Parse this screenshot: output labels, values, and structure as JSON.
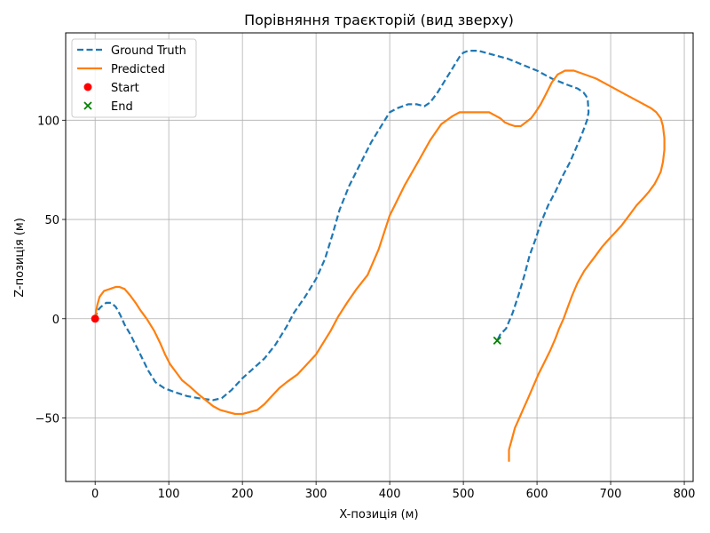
{
  "chart_data": {
    "type": "line",
    "title": "Порівняння траєкторій (вид зверху)",
    "xlabel": "X-позиція (м)",
    "ylabel": "Z-позиція (м)",
    "xlim": [
      -40,
      812
    ],
    "ylim": [
      -82,
      144
    ],
    "xticks": [
      0,
      100,
      200,
      300,
      400,
      500,
      600,
      700,
      800
    ],
    "yticks": [
      -50,
      0,
      50,
      100
    ],
    "grid": true,
    "legend_position": "top-left",
    "series": [
      {
        "name": "Ground Truth",
        "color": "#1f77b4",
        "style": "dashed",
        "points": [
          [
            0,
            0
          ],
          [
            3,
            4
          ],
          [
            8,
            6
          ],
          [
            15,
            8
          ],
          [
            22,
            8
          ],
          [
            28,
            6
          ],
          [
            34,
            2
          ],
          [
            40,
            -3
          ],
          [
            48,
            -8
          ],
          [
            56,
            -14
          ],
          [
            64,
            -20
          ],
          [
            72,
            -26
          ],
          [
            82,
            -32
          ],
          [
            94,
            -35
          ],
          [
            108,
            -37
          ],
          [
            125,
            -39
          ],
          [
            140,
            -40
          ],
          [
            160,
            -41
          ],
          [
            172,
            -40
          ],
          [
            185,
            -36
          ],
          [
            200,
            -30
          ],
          [
            212,
            -26
          ],
          [
            230,
            -20
          ],
          [
            245,
            -13
          ],
          [
            260,
            -4
          ],
          [
            270,
            3
          ],
          [
            285,
            11
          ],
          [
            300,
            20
          ],
          [
            312,
            30
          ],
          [
            322,
            42
          ],
          [
            332,
            55
          ],
          [
            345,
            67
          ],
          [
            360,
            78
          ],
          [
            375,
            89
          ],
          [
            390,
            98
          ],
          [
            400,
            104
          ],
          [
            410,
            106
          ],
          [
            425,
            108
          ],
          [
            437,
            108
          ],
          [
            447,
            107
          ],
          [
            455,
            109
          ],
          [
            465,
            114
          ],
          [
            475,
            120
          ],
          [
            485,
            126
          ],
          [
            495,
            132
          ],
          [
            500,
            134
          ],
          [
            507,
            135
          ],
          [
            520,
            135
          ],
          [
            540,
            133
          ],
          [
            560,
            131
          ],
          [
            580,
            128
          ],
          [
            600,
            125
          ],
          [
            620,
            121
          ],
          [
            640,
            118
          ],
          [
            655,
            116
          ],
          [
            663,
            114
          ],
          [
            667,
            112
          ],
          [
            669,
            110
          ],
          [
            670,
            104
          ],
          [
            668,
            100
          ],
          [
            664,
            96
          ],
          [
            660,
            92
          ],
          [
            652,
            85
          ],
          [
            645,
            79
          ],
          [
            635,
            72
          ],
          [
            625,
            64
          ],
          [
            615,
            57
          ],
          [
            605,
            48
          ],
          [
            598,
            40
          ],
          [
            590,
            32
          ],
          [
            583,
            22
          ],
          [
            575,
            12
          ],
          [
            567,
            3
          ],
          [
            558,
            -5
          ],
          [
            550,
            -8
          ],
          [
            546,
            -11
          ]
        ]
      },
      {
        "name": "Predicted",
        "color": "#ff7f0e",
        "style": "solid",
        "points": [
          [
            0,
            0
          ],
          [
            1,
            3
          ],
          [
            3,
            7
          ],
          [
            6,
            11
          ],
          [
            12,
            14
          ],
          [
            20,
            15
          ],
          [
            28,
            16
          ],
          [
            33,
            16
          ],
          [
            40,
            15
          ],
          [
            47,
            12
          ],
          [
            55,
            8
          ],
          [
            62,
            4
          ],
          [
            70,
            0
          ],
          [
            80,
            -6
          ],
          [
            88,
            -12
          ],
          [
            95,
            -18
          ],
          [
            102,
            -23
          ],
          [
            110,
            -27
          ],
          [
            118,
            -31
          ],
          [
            128,
            -34
          ],
          [
            140,
            -38
          ],
          [
            150,
            -41
          ],
          [
            160,
            -44
          ],
          [
            170,
            -46
          ],
          [
            180,
            -47
          ],
          [
            190,
            -48
          ],
          [
            200,
            -48
          ],
          [
            210,
            -47
          ],
          [
            220,
            -46
          ],
          [
            230,
            -43
          ],
          [
            240,
            -39
          ],
          [
            250,
            -35
          ],
          [
            260,
            -32
          ],
          [
            275,
            -28
          ],
          [
            285,
            -24
          ],
          [
            300,
            -18
          ],
          [
            310,
            -12
          ],
          [
            320,
            -6
          ],
          [
            330,
            1
          ],
          [
            342,
            8
          ],
          [
            355,
            15
          ],
          [
            370,
            22
          ],
          [
            385,
            35
          ],
          [
            400,
            52
          ],
          [
            420,
            67
          ],
          [
            440,
            80
          ],
          [
            455,
            90
          ],
          [
            470,
            98
          ],
          [
            485,
            102
          ],
          [
            495,
            104
          ],
          [
            510,
            104
          ],
          [
            525,
            104
          ],
          [
            535,
            104
          ],
          [
            545,
            102
          ],
          [
            550,
            101
          ],
          [
            556,
            99
          ],
          [
            562,
            98
          ],
          [
            570,
            97
          ],
          [
            578,
            97
          ],
          [
            585,
            99
          ],
          [
            592,
            101
          ],
          [
            598,
            104
          ],
          [
            605,
            108
          ],
          [
            612,
            113
          ],
          [
            620,
            119
          ],
          [
            628,
            123
          ],
          [
            638,
            125
          ],
          [
            650,
            125
          ],
          [
            665,
            123
          ],
          [
            680,
            121
          ],
          [
            700,
            117
          ],
          [
            720,
            113
          ],
          [
            740,
            109
          ],
          [
            755,
            106
          ],
          [
            762,
            104
          ],
          [
            768,
            101
          ],
          [
            771,
            97
          ],
          [
            773,
            91
          ],
          [
            773,
            85
          ],
          [
            771,
            79
          ],
          [
            768,
            74
          ],
          [
            764,
            71
          ],
          [
            760,
            68
          ],
          [
            752,
            64
          ],
          [
            745,
            61
          ],
          [
            735,
            57
          ],
          [
            725,
            52
          ],
          [
            715,
            47
          ],
          [
            705,
            43
          ],
          [
            695,
            39
          ],
          [
            688,
            36
          ],
          [
            680,
            32
          ],
          [
            672,
            28
          ],
          [
            664,
            24
          ],
          [
            655,
            18
          ],
          [
            648,
            12
          ],
          [
            642,
            6
          ],
          [
            636,
            0
          ],
          [
            630,
            -5
          ],
          [
            625,
            -10
          ],
          [
            618,
            -16
          ],
          [
            610,
            -22
          ],
          [
            602,
            -28
          ],
          [
            595,
            -34
          ],
          [
            588,
            -40
          ],
          [
            582,
            -45
          ],
          [
            576,
            -50
          ],
          [
            570,
            -55
          ],
          [
            565,
            -62
          ],
          [
            562,
            -66
          ],
          [
            562,
            -72
          ]
        ]
      }
    ],
    "markers": [
      {
        "name": "Start",
        "x": 0,
        "y": 0,
        "color": "#ff0000",
        "shape": "circle"
      },
      {
        "name": "End",
        "x": 546,
        "y": -11,
        "color": "#008000",
        "shape": "x"
      }
    ]
  }
}
